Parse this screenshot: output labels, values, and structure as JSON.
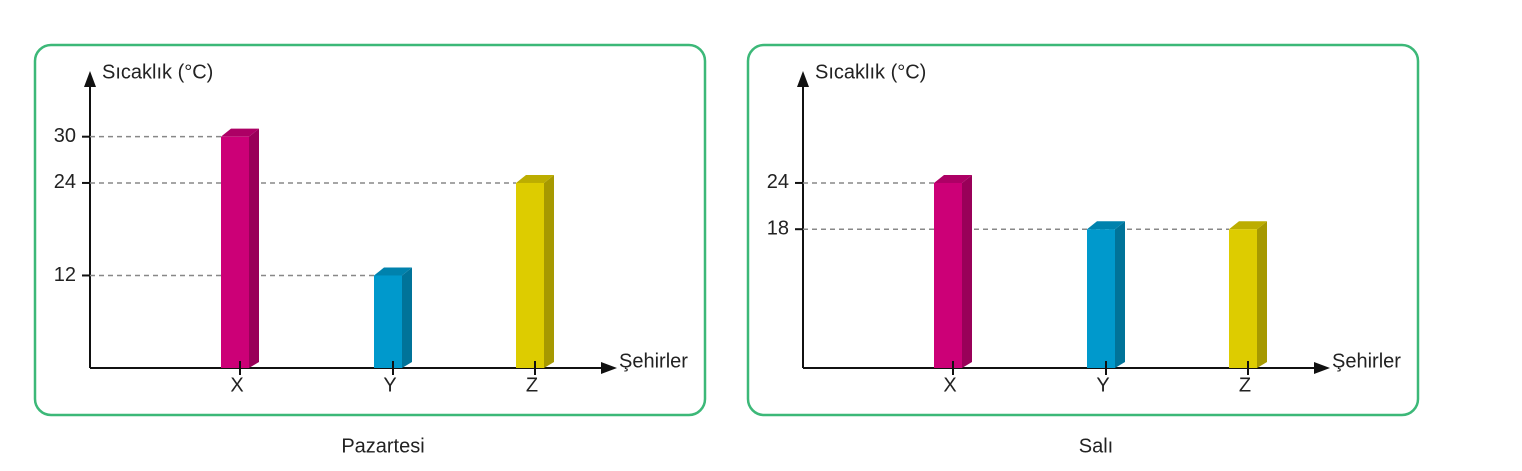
{
  "chart_data": [
    {
      "type": "bar",
      "title": "Pazartesi",
      "ylabel": "Sıcaklık (°C)",
      "xlabel": "Şehirler",
      "categories": [
        "X",
        "Y",
        "Z"
      ],
      "values": [
        30,
        12,
        24
      ],
      "colors": [
        "#cc0077",
        "#0099cc",
        "#ddcc00"
      ],
      "ylim": [
        0,
        38
      ],
      "yticks": [
        12,
        24,
        30
      ],
      "grid": "dashed"
    },
    {
      "type": "bar",
      "title": "Salı",
      "ylabel": "Sıcaklık (°C)",
      "xlabel": "Şehirler",
      "categories": [
        "X",
        "Y",
        "Z"
      ],
      "values": [
        24,
        18,
        18
      ],
      "colors": [
        "#cc0077",
        "#0099cc",
        "#ddcc00"
      ],
      "ylim": [
        0,
        38
      ],
      "yticks": [
        18,
        24
      ],
      "grid": "dashed"
    }
  ]
}
